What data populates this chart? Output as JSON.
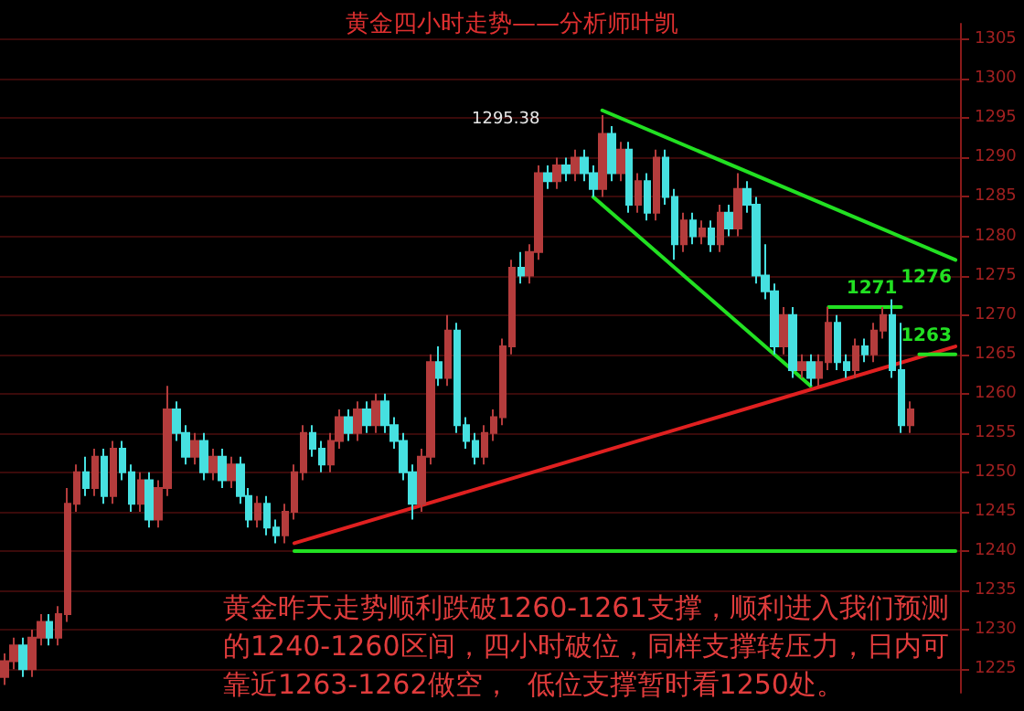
{
  "chart_data": {
    "type": "candlestick",
    "title": "黄金四小时走势——分析师叶凯",
    "categories": [
      null,
      null,
      null,
      null,
      null,
      null,
      null,
      null,
      null,
      null,
      null,
      null,
      null,
      null,
      null,
      null,
      null,
      null,
      null,
      null,
      null,
      null,
      null,
      null,
      null,
      null,
      null,
      null,
      null,
      null,
      null,
      null,
      null,
      null,
      null,
      null,
      null,
      null,
      null,
      null,
      null,
      null,
      null,
      null,
      null,
      null,
      null,
      null,
      null,
      null,
      null,
      null,
      null,
      null,
      null,
      null,
      null,
      null,
      null,
      null,
      null,
      null,
      null,
      null,
      null,
      null,
      null,
      null,
      null,
      null,
      null,
      null,
      null,
      null,
      null,
      null,
      null,
      null,
      null,
      null,
      null,
      null,
      null,
      null,
      null,
      null,
      null,
      null,
      null,
      null,
      null,
      null,
      null,
      null,
      null,
      null,
      null,
      null,
      null,
      null,
      null,
      null,
      null,
      null,
      null,
      null
    ],
    "ohlc": [
      [
        1224,
        1227,
        1223,
        1226
      ],
      [
        1226,
        1229,
        1225,
        1228
      ],
      [
        1228,
        1229,
        1224,
        1225
      ],
      [
        1225,
        1230,
        1224,
        1229
      ],
      [
        1229,
        1232,
        1228,
        1231
      ],
      [
        1231,
        1232,
        1228,
        1229
      ],
      [
        1229,
        1233,
        1228,
        1232
      ],
      [
        1232,
        1248,
        1231,
        1246
      ],
      [
        1246,
        1251,
        1245,
        1250
      ],
      [
        1250,
        1252,
        1247,
        1248
      ],
      [
        1248,
        1253,
        1247,
        1252
      ],
      [
        1252,
        1253,
        1246,
        1247
      ],
      [
        1247,
        1254,
        1246,
        1253
      ],
      [
        1253,
        1254,
        1249,
        1250
      ],
      [
        1250,
        1251,
        1245,
        1246
      ],
      [
        1246,
        1250,
        1245,
        1249
      ],
      [
        1249,
        1250,
        1243,
        1244
      ],
      [
        1244,
        1249,
        1243,
        1248
      ],
      [
        1248,
        1261,
        1247,
        1258
      ],
      [
        1258,
        1259,
        1254,
        1255
      ],
      [
        1255,
        1256,
        1251,
        1252
      ],
      [
        1252,
        1255,
        1251,
        1254
      ],
      [
        1254,
        1255,
        1249,
        1250
      ],
      [
        1250,
        1253,
        1249,
        1252
      ],
      [
        1252,
        1253,
        1248,
        1249
      ],
      [
        1249,
        1252,
        1248,
        1251
      ],
      [
        1251,
        1252,
        1246,
        1247
      ],
      [
        1247,
        1248,
        1243,
        1244
      ],
      [
        1244,
        1247,
        1243,
        1246
      ],
      [
        1246,
        1247,
        1242,
        1243
      ],
      [
        1243,
        1244,
        1241,
        1242
      ],
      [
        1242,
        1246,
        1241,
        1245
      ],
      [
        1245,
        1251,
        1244,
        1250
      ],
      [
        1250,
        1256,
        1249,
        1255
      ],
      [
        1255,
        1256,
        1252,
        1253
      ],
      [
        1253,
        1254,
        1250,
        1251
      ],
      [
        1251,
        1255,
        1250,
        1254
      ],
      [
        1254,
        1258,
        1253,
        1257
      ],
      [
        1257,
        1258,
        1254,
        1255
      ],
      [
        1255,
        1259,
        1254,
        1258
      ],
      [
        1258,
        1259,
        1255,
        1256
      ],
      [
        1256,
        1260,
        1255,
        1259
      ],
      [
        1259,
        1260,
        1255,
        1256
      ],
      [
        1256,
        1257,
        1253,
        1254
      ],
      [
        1254,
        1255,
        1249,
        1250
      ],
      [
        1250,
        1251,
        1244,
        1246
      ],
      [
        1246,
        1253,
        1245,
        1252
      ],
      [
        1252,
        1265,
        1251,
        1264
      ],
      [
        1264,
        1266,
        1261,
        1262
      ],
      [
        1262,
        1270,
        1261,
        1268
      ],
      [
        1268,
        1269,
        1255,
        1256
      ],
      [
        1256,
        1257,
        1253,
        1254
      ],
      [
        1254,
        1255,
        1251,
        1252
      ],
      [
        1252,
        1256,
        1251,
        1255
      ],
      [
        1255,
        1258,
        1254,
        1257
      ],
      [
        1257,
        1267,
        1256,
        1266
      ],
      [
        1266,
        1277,
        1265,
        1276
      ],
      [
        1276,
        1278,
        1274,
        1275
      ],
      [
        1275,
        1279,
        1274,
        1278
      ],
      [
        1278,
        1289,
        1277,
        1288
      ],
      [
        1288,
        1289,
        1286,
        1287
      ],
      [
        1287,
        1290,
        1286,
        1289
      ],
      [
        1289,
        1290,
        1287,
        1288
      ],
      [
        1288,
        1291,
        1287,
        1290
      ],
      [
        1290,
        1291,
        1287,
        1288
      ],
      [
        1288,
        1289,
        1285,
        1286
      ],
      [
        1286,
        1295.38,
        1285,
        1293
      ],
      [
        1293,
        1294,
        1287,
        1288
      ],
      [
        1288,
        1292,
        1287,
        1291
      ],
      [
        1291,
        1292,
        1283,
        1284
      ],
      [
        1284,
        1288,
        1283,
        1287
      ],
      [
        1287,
        1288,
        1282,
        1283
      ],
      [
        1283,
        1291,
        1282,
        1290
      ],
      [
        1290,
        1291,
        1284,
        1285
      ],
      [
        1285,
        1286,
        1277,
        1279
      ],
      [
        1279,
        1283,
        1278,
        1282
      ],
      [
        1282,
        1283,
        1279,
        1280
      ],
      [
        1280,
        1282,
        1279,
        1281
      ],
      [
        1281,
        1282,
        1278,
        1279
      ],
      [
        1279,
        1284,
        1278,
        1283
      ],
      [
        1283,
        1284,
        1280,
        1281
      ],
      [
        1281,
        1288,
        1280,
        1286
      ],
      [
        1286,
        1287,
        1283,
        1284
      ],
      [
        1284,
        1285,
        1274,
        1275
      ],
      [
        1275,
        1279,
        1272,
        1273
      ],
      [
        1273,
        1274,
        1265,
        1266
      ],
      [
        1266,
        1271,
        1265,
        1270
      ],
      [
        1270,
        1271,
        1262,
        1263
      ],
      [
        1263,
        1265,
        1262,
        1264
      ],
      [
        1264,
        1265,
        1261,
        1262
      ],
      [
        1262,
        1265,
        1261,
        1264
      ],
      [
        1264,
        1271,
        1263,
        1269
      ],
      [
        1269,
        1270,
        1263,
        1264
      ],
      [
        1264,
        1265,
        1262,
        1263
      ],
      [
        1263,
        1267,
        1262,
        1266
      ],
      [
        1266,
        1267,
        1264,
        1265
      ],
      [
        1265,
        1269,
        1264,
        1268
      ],
      [
        1268,
        1271,
        1267,
        1270
      ],
      [
        1270,
        1272,
        1262,
        1263
      ],
      [
        1263,
        1269,
        1255,
        1256
      ],
      [
        1256,
        1259,
        1255,
        1258
      ],
      null,
      null,
      null,
      null,
      null
    ],
    "series": [
      {
        "type": "line",
        "color": "#e02020",
        "values": [
          null,
          null,
          null,
          null,
          null,
          null,
          null,
          null,
          null,
          null,
          null,
          null,
          null,
          null,
          null,
          null,
          null,
          null,
          null,
          null,
          null,
          null,
          null,
          null,
          null,
          null,
          null,
          null,
          null,
          null,
          null,
          null,
          1241,
          null,
          null,
          null,
          null,
          null,
          null,
          null,
          null,
          null,
          null,
          null,
          null,
          null,
          null,
          null,
          null,
          null,
          null,
          null,
          null,
          null,
          null,
          null,
          null,
          null,
          null,
          null,
          null,
          null,
          null,
          null,
          null,
          null,
          null,
          null,
          null,
          null,
          null,
          null,
          null,
          null,
          null,
          null,
          null,
          null,
          null,
          null,
          null,
          null,
          null,
          null,
          null,
          null,
          null,
          null,
          null,
          null,
          null,
          null,
          null,
          null,
          null,
          null,
          null,
          null,
          null,
          null,
          null,
          null,
          null,
          null,
          null,
          1266
        ]
      },
      {
        "type": "line",
        "name": "1276",
        "color": "#22e022",
        "values": [
          null,
          null,
          null,
          null,
          null,
          null,
          null,
          null,
          null,
          null,
          null,
          null,
          null,
          null,
          null,
          null,
          null,
          null,
          null,
          null,
          null,
          null,
          null,
          null,
          null,
          null,
          null,
          null,
          null,
          null,
          null,
          null,
          null,
          null,
          null,
          null,
          null,
          null,
          null,
          null,
          null,
          null,
          null,
          null,
          null,
          null,
          null,
          null,
          null,
          null,
          null,
          null,
          null,
          null,
          null,
          null,
          null,
          null,
          null,
          null,
          null,
          null,
          null,
          null,
          null,
          null,
          1296,
          null,
          null,
          null,
          null,
          null,
          null,
          null,
          null,
          null,
          null,
          null,
          null,
          null,
          null,
          null,
          null,
          null,
          null,
          null,
          null,
          null,
          null,
          null,
          null,
          null,
          null,
          null,
          null,
          null,
          null,
          null,
          null,
          null,
          null,
          null,
          null,
          null,
          null,
          1277
        ]
      },
      {
        "type": "line",
        "color": "#22e022",
        "values": [
          null,
          null,
          null,
          null,
          null,
          null,
          null,
          null,
          null,
          null,
          null,
          null,
          null,
          null,
          null,
          null,
          null,
          null,
          null,
          null,
          null,
          null,
          null,
          null,
          null,
          null,
          null,
          null,
          null,
          null,
          null,
          null,
          null,
          null,
          null,
          null,
          null,
          null,
          null,
          null,
          null,
          null,
          null,
          null,
          null,
          null,
          null,
          null,
          null,
          null,
          null,
          null,
          null,
          null,
          null,
          null,
          null,
          null,
          null,
          null,
          null,
          null,
          null,
          null,
          null,
          1285,
          null,
          null,
          null,
          null,
          null,
          null,
          null,
          null,
          null,
          null,
          null,
          null,
          null,
          null,
          null,
          null,
          null,
          null,
          null,
          null,
          null,
          null,
          null,
          1261,
          null,
          null,
          null,
          null,
          null,
          null,
          null,
          null,
          null,
          null,
          null,
          null,
          null,
          null,
          null,
          null
        ]
      },
      {
        "type": "line",
        "name": "1271",
        "color": "#22e022",
        "values": [
          null,
          null,
          null,
          null,
          null,
          null,
          null,
          null,
          null,
          null,
          null,
          null,
          null,
          null,
          null,
          null,
          null,
          null,
          null,
          null,
          null,
          null,
          null,
          null,
          null,
          null,
          null,
          null,
          null,
          null,
          null,
          null,
          null,
          null,
          null,
          null,
          null,
          null,
          null,
          null,
          null,
          null,
          null,
          null,
          null,
          null,
          null,
          null,
          null,
          null,
          null,
          null,
          null,
          null,
          null,
          null,
          null,
          null,
          null,
          null,
          null,
          null,
          null,
          null,
          null,
          null,
          null,
          null,
          null,
          null,
          null,
          null,
          null,
          null,
          null,
          null,
          null,
          null,
          null,
          null,
          null,
          null,
          null,
          null,
          null,
          null,
          null,
          null,
          null,
          null,
          null,
          1271,
          null,
          null,
          null,
          null,
          null,
          null,
          null,
          1271,
          null,
          null,
          null,
          null,
          null,
          null
        ]
      },
      {
        "type": "line",
        "name": "1263",
        "color": "#22e022",
        "values": [
          null,
          null,
          null,
          null,
          null,
          null,
          null,
          null,
          null,
          null,
          null,
          null,
          null,
          null,
          null,
          null,
          null,
          null,
          null,
          null,
          null,
          null,
          null,
          null,
          null,
          null,
          null,
          null,
          null,
          null,
          null,
          null,
          null,
          null,
          null,
          null,
          null,
          null,
          null,
          null,
          null,
          null,
          null,
          null,
          null,
          null,
          null,
          null,
          null,
          null,
          null,
          null,
          null,
          null,
          null,
          null,
          null,
          null,
          null,
          null,
          null,
          null,
          null,
          null,
          null,
          null,
          null,
          null,
          null,
          null,
          null,
          null,
          null,
          null,
          null,
          null,
          null,
          null,
          null,
          null,
          null,
          null,
          null,
          null,
          null,
          null,
          null,
          null,
          null,
          null,
          null,
          null,
          null,
          null,
          null,
          null,
          null,
          null,
          null,
          null,
          null,
          1265,
          null,
          null,
          null,
          1265
        ]
      },
      {
        "type": "line",
        "color": "#22e022",
        "values": [
          null,
          null,
          null,
          null,
          null,
          null,
          null,
          null,
          null,
          null,
          null,
          null,
          null,
          null,
          null,
          null,
          null,
          null,
          null,
          null,
          null,
          null,
          null,
          null,
          null,
          null,
          null,
          null,
          null,
          null,
          null,
          null,
          1240,
          null,
          null,
          null,
          null,
          null,
          null,
          null,
          null,
          null,
          null,
          null,
          null,
          null,
          null,
          null,
          null,
          null,
          null,
          null,
          null,
          null,
          null,
          null,
          null,
          null,
          null,
          null,
          null,
          null,
          null,
          null,
          null,
          null,
          null,
          null,
          null,
          null,
          null,
          null,
          null,
          null,
          null,
          null,
          null,
          null,
          null,
          null,
          null,
          null,
          null,
          null,
          null,
          null,
          null,
          null,
          null,
          null,
          null,
          null,
          null,
          null,
          null,
          null,
          null,
          null,
          null,
          null,
          null,
          null,
          null,
          null,
          null,
          1240
        ]
      }
    ],
    "ylim": [
      1222,
      1307
    ],
    "yticks": [
      1225,
      1230,
      1235,
      1240,
      1245,
      1250,
      1255,
      1260,
      1265,
      1270,
      1275,
      1280,
      1285,
      1290,
      1295,
      1300,
      1305
    ],
    "grid": "y",
    "tick_labels": "y",
    "legend": false,
    "annotations": [
      "1295.38",
      "黄金昨天走势顺利跌破1260-1261支撑，顺利进入我们预测的1240-1260区间，四小时破位，同样支撑转压力，日内可靠近1263-1262做空，  低位支撑暂时看1250处。"
    ]
  }
}
